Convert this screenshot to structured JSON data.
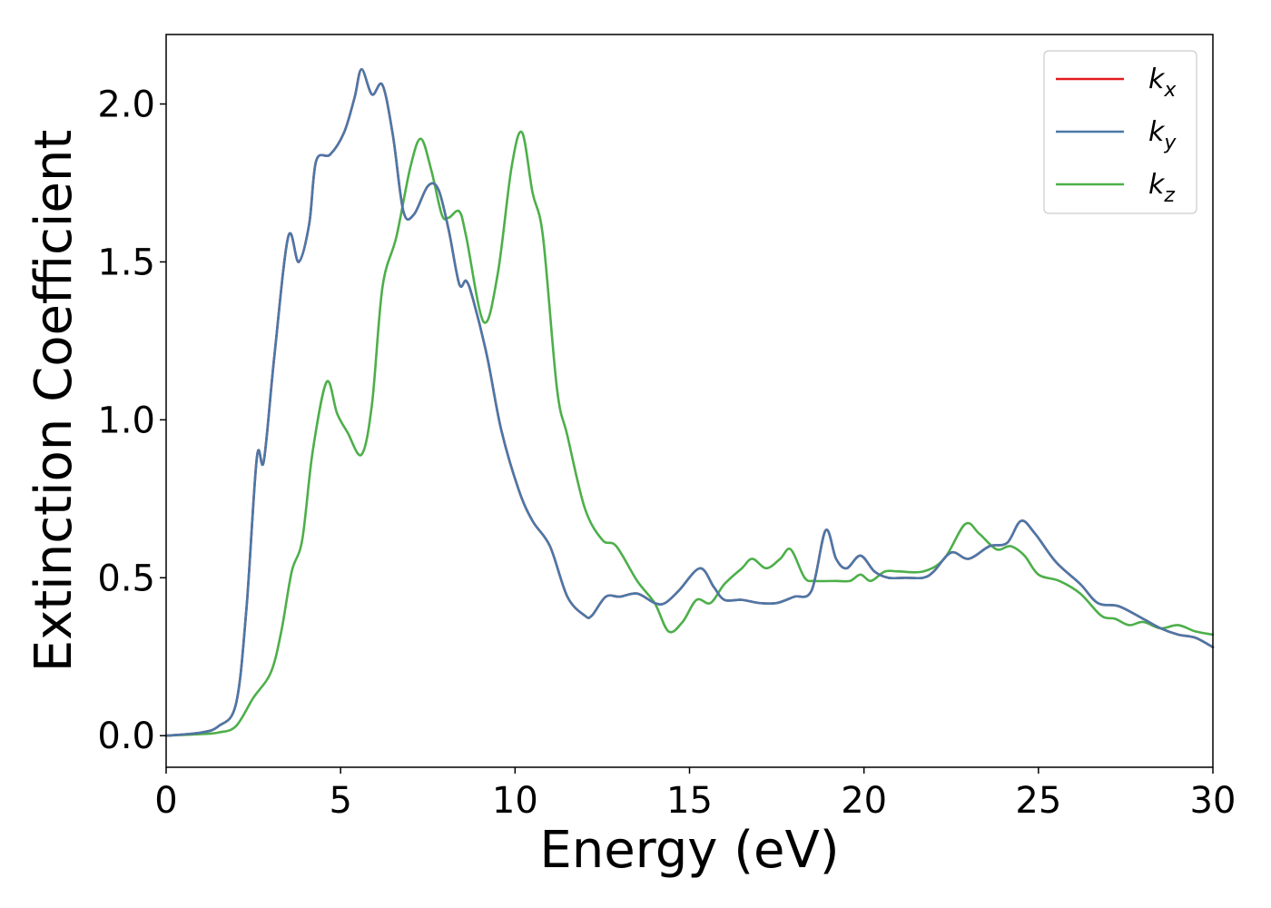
{
  "chart_data": {
    "type": "line",
    "title": "",
    "xlabel": "Energy (eV)",
    "ylabel": "Extinction Coefficient",
    "xlim": [
      0,
      30
    ],
    "ylim": [
      -0.1,
      2.22
    ],
    "xticks": [
      0,
      5,
      10,
      15,
      20,
      25,
      30
    ],
    "xtick_labels": [
      "0",
      "5",
      "10",
      "15",
      "20",
      "25",
      "30"
    ],
    "yticks": [
      0.0,
      0.5,
      1.0,
      1.5,
      2.0
    ],
    "ytick_labels": [
      "0.0",
      "0.5",
      "1.0",
      "1.5",
      "2.0"
    ],
    "grid": false,
    "legend_position": "top-right",
    "series": [
      {
        "name": "k_x",
        "label_base": "k",
        "label_sub": "x",
        "color": "#e41a1c",
        "points": [
          [
            0,
            0
          ],
          [
            1,
            0.01
          ],
          [
            1.5,
            0.03
          ],
          [
            2,
            0.1
          ],
          [
            2.3,
            0.4
          ],
          [
            2.6,
            0.88
          ],
          [
            2.8,
            0.87
          ],
          [
            3.1,
            1.2
          ],
          [
            3.5,
            1.58
          ],
          [
            3.8,
            1.5
          ],
          [
            4.1,
            1.62
          ],
          [
            4.3,
            1.82
          ],
          [
            4.7,
            1.84
          ],
          [
            5.1,
            1.91
          ],
          [
            5.4,
            2.02
          ],
          [
            5.6,
            2.11
          ],
          [
            5.9,
            2.03
          ],
          [
            6.2,
            2.06
          ],
          [
            6.5,
            1.9
          ],
          [
            6.8,
            1.66
          ],
          [
            7.1,
            1.65
          ],
          [
            7.5,
            1.74
          ],
          [
            7.8,
            1.73
          ],
          [
            8.1,
            1.6
          ],
          [
            8.4,
            1.43
          ],
          [
            8.6,
            1.44
          ],
          [
            8.8,
            1.38
          ],
          [
            9.2,
            1.2
          ],
          [
            9.6,
            0.97
          ],
          [
            10.1,
            0.78
          ],
          [
            10.5,
            0.68
          ],
          [
            11,
            0.6
          ],
          [
            11.5,
            0.44
          ],
          [
            12,
            0.38
          ],
          [
            12.2,
            0.38
          ],
          [
            12.6,
            0.44
          ],
          [
            13,
            0.44
          ],
          [
            13.5,
            0.45
          ],
          [
            14,
            0.42
          ],
          [
            14.3,
            0.42
          ],
          [
            14.7,
            0.46
          ],
          [
            15.3,
            0.53
          ],
          [
            15.7,
            0.47
          ],
          [
            16,
            0.43
          ],
          [
            16.5,
            0.43
          ],
          [
            17,
            0.42
          ],
          [
            17.5,
            0.42
          ],
          [
            18,
            0.44
          ],
          [
            18.5,
            0.46
          ],
          [
            18.9,
            0.65
          ],
          [
            19.2,
            0.56
          ],
          [
            19.5,
            0.53
          ],
          [
            19.9,
            0.57
          ],
          [
            20.3,
            0.52
          ],
          [
            20.7,
            0.5
          ],
          [
            21.2,
            0.5
          ],
          [
            21.7,
            0.5
          ],
          [
            22,
            0.52
          ],
          [
            22.5,
            0.58
          ],
          [
            23,
            0.56
          ],
          [
            23.6,
            0.6
          ],
          [
            24.1,
            0.61
          ],
          [
            24.5,
            0.68
          ],
          [
            24.9,
            0.64
          ],
          [
            25.5,
            0.55
          ],
          [
            26.2,
            0.48
          ],
          [
            26.7,
            0.42
          ],
          [
            27.3,
            0.41
          ],
          [
            28,
            0.37
          ],
          [
            28.5,
            0.34
          ],
          [
            29,
            0.32
          ],
          [
            29.5,
            0.31
          ],
          [
            30,
            0.28
          ]
        ]
      },
      {
        "name": "k_y",
        "label_base": "k",
        "label_sub": "y",
        "color": "#4a78a8",
        "points": [
          [
            0,
            0
          ],
          [
            1,
            0.01
          ],
          [
            1.5,
            0.03
          ],
          [
            2,
            0.1
          ],
          [
            2.3,
            0.4
          ],
          [
            2.6,
            0.88
          ],
          [
            2.8,
            0.87
          ],
          [
            3.1,
            1.2
          ],
          [
            3.5,
            1.58
          ],
          [
            3.8,
            1.5
          ],
          [
            4.1,
            1.62
          ],
          [
            4.3,
            1.82
          ],
          [
            4.7,
            1.84
          ],
          [
            5.1,
            1.91
          ],
          [
            5.4,
            2.02
          ],
          [
            5.6,
            2.11
          ],
          [
            5.9,
            2.03
          ],
          [
            6.2,
            2.06
          ],
          [
            6.5,
            1.9
          ],
          [
            6.8,
            1.66
          ],
          [
            7.1,
            1.65
          ],
          [
            7.5,
            1.74
          ],
          [
            7.8,
            1.73
          ],
          [
            8.1,
            1.6
          ],
          [
            8.4,
            1.43
          ],
          [
            8.6,
            1.44
          ],
          [
            8.8,
            1.38
          ],
          [
            9.2,
            1.2
          ],
          [
            9.6,
            0.97
          ],
          [
            10.1,
            0.78
          ],
          [
            10.5,
            0.68
          ],
          [
            11,
            0.6
          ],
          [
            11.5,
            0.44
          ],
          [
            12,
            0.38
          ],
          [
            12.2,
            0.38
          ],
          [
            12.6,
            0.44
          ],
          [
            13,
            0.44
          ],
          [
            13.5,
            0.45
          ],
          [
            14,
            0.42
          ],
          [
            14.3,
            0.42
          ],
          [
            14.7,
            0.46
          ],
          [
            15.3,
            0.53
          ],
          [
            15.7,
            0.47
          ],
          [
            16,
            0.43
          ],
          [
            16.5,
            0.43
          ],
          [
            17,
            0.42
          ],
          [
            17.5,
            0.42
          ],
          [
            18,
            0.44
          ],
          [
            18.5,
            0.46
          ],
          [
            18.9,
            0.65
          ],
          [
            19.2,
            0.56
          ],
          [
            19.5,
            0.53
          ],
          [
            19.9,
            0.57
          ],
          [
            20.3,
            0.52
          ],
          [
            20.7,
            0.5
          ],
          [
            21.2,
            0.5
          ],
          [
            21.7,
            0.5
          ],
          [
            22,
            0.52
          ],
          [
            22.5,
            0.58
          ],
          [
            23,
            0.56
          ],
          [
            23.6,
            0.6
          ],
          [
            24.1,
            0.61
          ],
          [
            24.5,
            0.68
          ],
          [
            24.9,
            0.64
          ],
          [
            25.5,
            0.55
          ],
          [
            26.2,
            0.48
          ],
          [
            26.7,
            0.42
          ],
          [
            27.3,
            0.41
          ],
          [
            28,
            0.37
          ],
          [
            28.5,
            0.34
          ],
          [
            29,
            0.32
          ],
          [
            29.5,
            0.31
          ],
          [
            30,
            0.28
          ]
        ]
      },
      {
        "name": "k_z",
        "label_base": "k",
        "label_sub": "z",
        "color": "#4daf4a",
        "points": [
          [
            0,
            0
          ],
          [
            1,
            0.005
          ],
          [
            1.5,
            0.01
          ],
          [
            2,
            0.03
          ],
          [
            2.5,
            0.12
          ],
          [
            3,
            0.2
          ],
          [
            3.3,
            0.33
          ],
          [
            3.6,
            0.52
          ],
          [
            3.9,
            0.62
          ],
          [
            4.2,
            0.9
          ],
          [
            4.6,
            1.12
          ],
          [
            4.9,
            1.02
          ],
          [
            5.2,
            0.96
          ],
          [
            5.6,
            0.89
          ],
          [
            5.9,
            1.05
          ],
          [
            6.2,
            1.42
          ],
          [
            6.6,
            1.58
          ],
          [
            7,
            1.8
          ],
          [
            7.3,
            1.89
          ],
          [
            7.6,
            1.79
          ],
          [
            7.9,
            1.65
          ],
          [
            8.1,
            1.64
          ],
          [
            8.4,
            1.66
          ],
          [
            8.6,
            1.58
          ],
          [
            9.1,
            1.31
          ],
          [
            9.5,
            1.46
          ],
          [
            9.9,
            1.8
          ],
          [
            10.2,
            1.91
          ],
          [
            10.5,
            1.72
          ],
          [
            10.8,
            1.58
          ],
          [
            11.2,
            1.1
          ],
          [
            11.5,
            0.95
          ],
          [
            12,
            0.72
          ],
          [
            12.5,
            0.62
          ],
          [
            12.9,
            0.6
          ],
          [
            13.5,
            0.49
          ],
          [
            14,
            0.42
          ],
          [
            14.4,
            0.33
          ],
          [
            14.8,
            0.36
          ],
          [
            15.2,
            0.43
          ],
          [
            15.6,
            0.42
          ],
          [
            16,
            0.48
          ],
          [
            16.5,
            0.53
          ],
          [
            16.8,
            0.56
          ],
          [
            17.2,
            0.53
          ],
          [
            17.6,
            0.56
          ],
          [
            17.9,
            0.59
          ],
          [
            18.3,
            0.5
          ],
          [
            18.6,
            0.49
          ],
          [
            19.2,
            0.49
          ],
          [
            19.6,
            0.49
          ],
          [
            19.9,
            0.51
          ],
          [
            20.2,
            0.49
          ],
          [
            20.6,
            0.52
          ],
          [
            21,
            0.52
          ],
          [
            21.7,
            0.52
          ],
          [
            22.3,
            0.56
          ],
          [
            22.9,
            0.67
          ],
          [
            23.3,
            0.64
          ],
          [
            23.8,
            0.59
          ],
          [
            24.2,
            0.6
          ],
          [
            24.6,
            0.57
          ],
          [
            25,
            0.51
          ],
          [
            25.6,
            0.49
          ],
          [
            26.2,
            0.45
          ],
          [
            26.8,
            0.38
          ],
          [
            27.2,
            0.37
          ],
          [
            27.6,
            0.35
          ],
          [
            28,
            0.36
          ],
          [
            28.5,
            0.34
          ],
          [
            29,
            0.35
          ],
          [
            29.5,
            0.33
          ],
          [
            30,
            0.32
          ]
        ]
      }
    ]
  }
}
